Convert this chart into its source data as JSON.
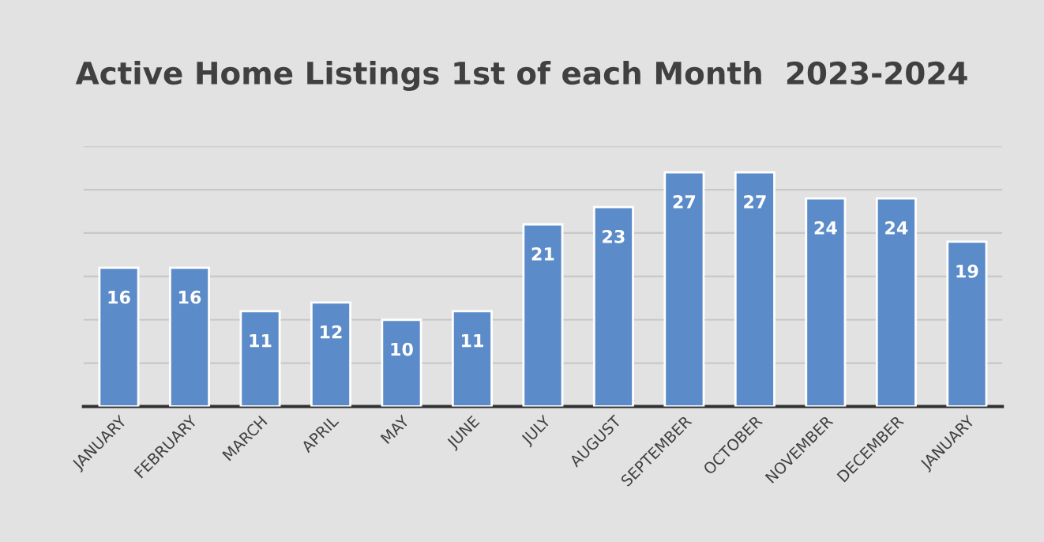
{
  "chart_data": {
    "type": "bar",
    "title": "Active Home Listings 1st of each Month  2023-2024",
    "categories": [
      "JANUARY",
      "FEBRUARY",
      "MARCH",
      "APRIL",
      "MAY",
      "JUNE",
      "JULY",
      "AUGUST",
      "SEPTEMBER",
      "OCTOBER",
      "NOVEMBER",
      "DECEMBER",
      "JANUARY"
    ],
    "values": [
      16,
      16,
      11,
      12,
      10,
      11,
      21,
      23,
      27,
      27,
      24,
      24,
      19
    ],
    "color": "#5b8bc9",
    "ylim": [
      0,
      30
    ],
    "yticks": [
      {
        "value": 0,
        "label": null
      },
      {
        "value": 5,
        "label": null
      },
      {
        "value": 10,
        "label": null
      },
      {
        "value": 15,
        "label": null
      },
      {
        "value": 20,
        "label": null
      },
      {
        "value": 25,
        "label": null
      },
      {
        "value": 30,
        "label": null
      }
    ],
    "grid": "y",
    "data_labels": true,
    "tick_labels": "x"
  }
}
